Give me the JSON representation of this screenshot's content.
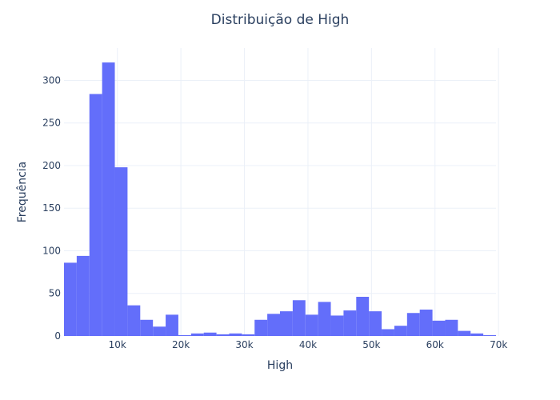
{
  "chart_data": {
    "type": "bar",
    "title": "Distribuição de High",
    "xlabel": "High",
    "ylabel": "Frequência",
    "xlim": [
      1600,
      69600
    ],
    "ylim": [
      0,
      338
    ],
    "bin_start": 1600,
    "bin_width": 2000,
    "values": [
      86,
      94,
      284,
      321,
      198,
      36,
      19,
      11,
      25,
      1,
      3,
      4,
      2,
      3,
      2,
      19,
      26,
      29,
      42,
      25,
      40,
      24,
      30,
      46,
      29,
      8,
      12,
      27,
      31,
      18,
      19,
      6,
      3,
      1
    ],
    "x_ticks": [
      {
        "value": 10000,
        "label": "10k"
      },
      {
        "value": 20000,
        "label": "20k"
      },
      {
        "value": 30000,
        "label": "30k"
      },
      {
        "value": 40000,
        "label": "40k"
      },
      {
        "value": 50000,
        "label": "50k"
      },
      {
        "value": 60000,
        "label": "60k"
      },
      {
        "value": 70000,
        "label": "70k"
      }
    ],
    "y_ticks": [
      {
        "value": 0,
        "label": "0"
      },
      {
        "value": 50,
        "label": "50"
      },
      {
        "value": 100,
        "label": "100"
      },
      {
        "value": 150,
        "label": "150"
      },
      {
        "value": 200,
        "label": "200"
      },
      {
        "value": 250,
        "label": "250"
      },
      {
        "value": 300,
        "label": "300"
      }
    ],
    "bar_color": "#636efa",
    "grid": true,
    "grid_color": "#ebf0f8",
    "legend": false
  }
}
